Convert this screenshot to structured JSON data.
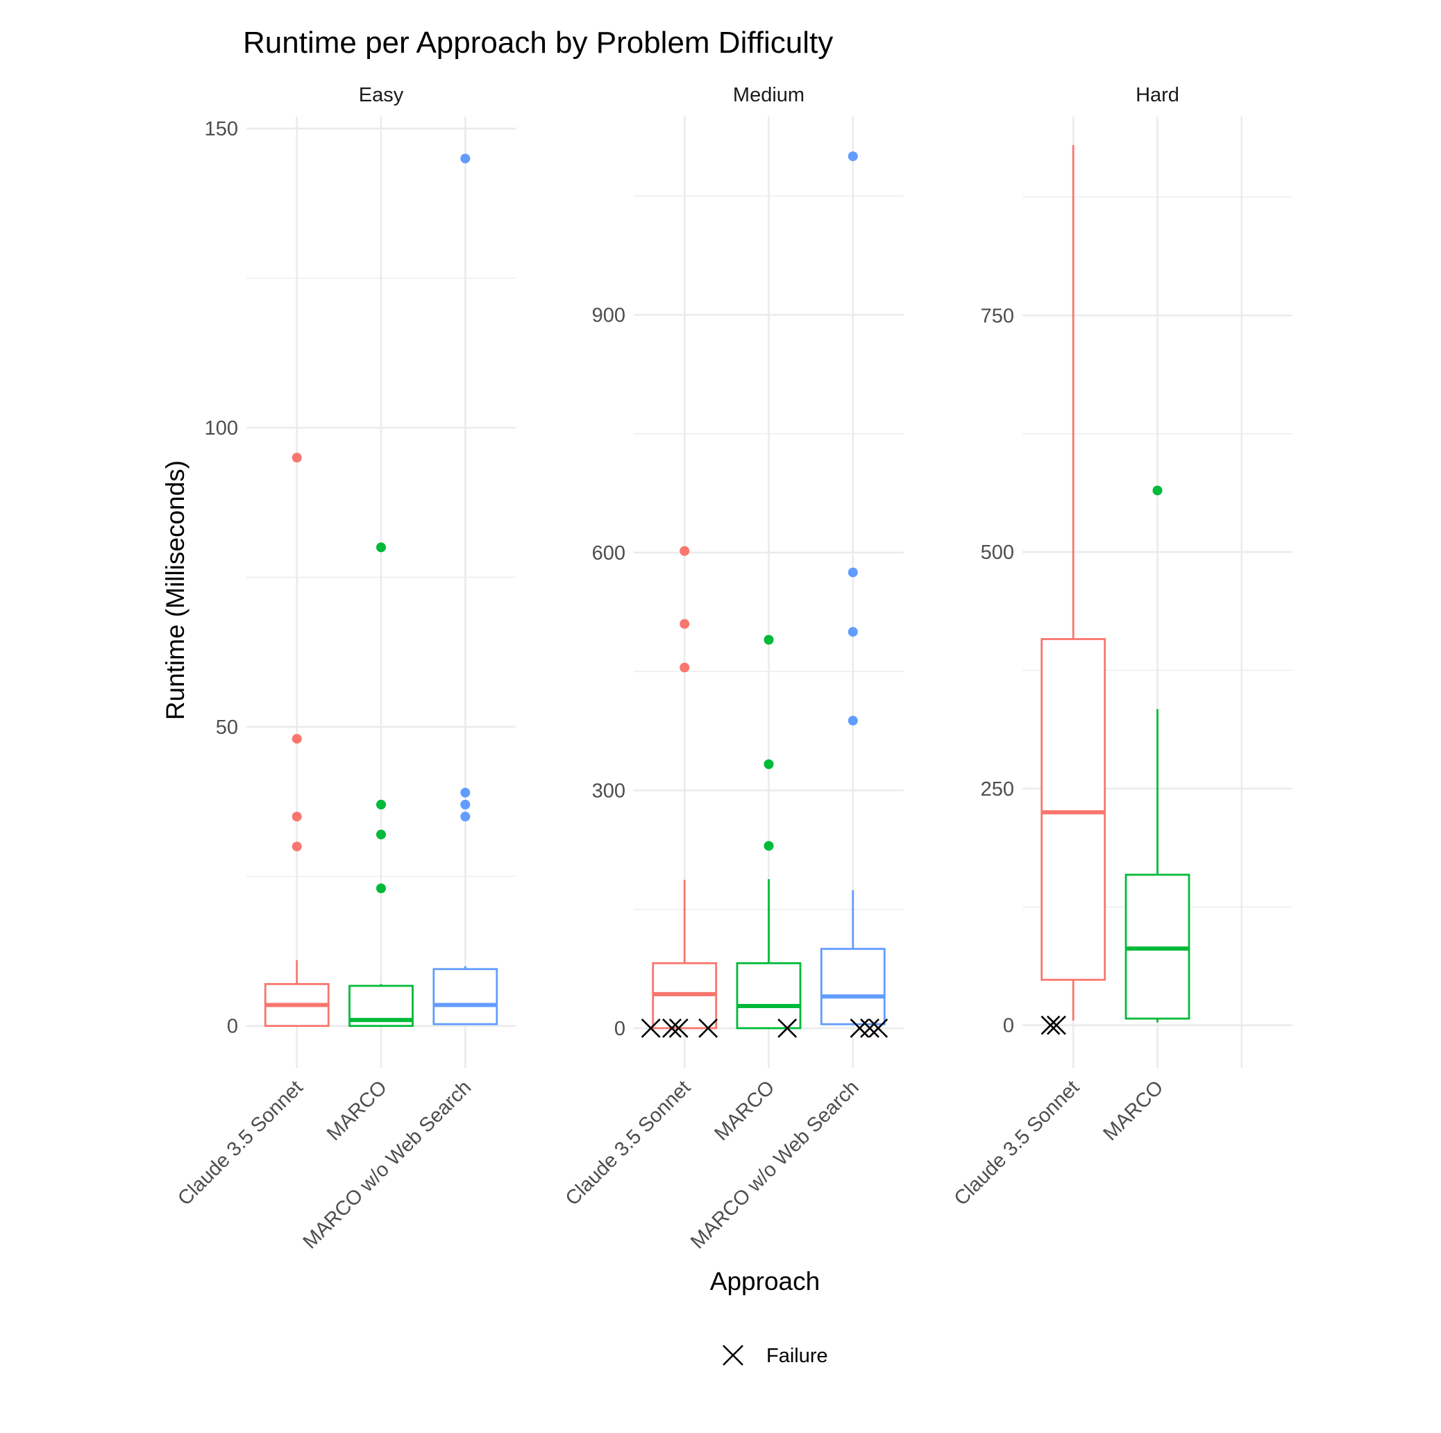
{
  "chart_data": {
    "type": "boxplot",
    "title": "Runtime per Approach by Problem Difficulty",
    "xlabel": "Approach",
    "ylabel": "Runtime (Milliseconds)",
    "legend": {
      "placement": "bottom",
      "entries": [
        {
          "label": "Failure",
          "shape": "cross"
        }
      ]
    },
    "colors": {
      "Claude 3.5 Sonnet": "#F8766D",
      "MARCO": "#00BA38",
      "MARCO w/o Web Search": "#619CFF"
    },
    "facets": [
      {
        "label": "Easy",
        "ylim": [
          -7,
          152
        ],
        "yticks": [
          0,
          50,
          100,
          150
        ],
        "categories": [
          "Claude 3.5 Sonnet",
          "MARCO",
          "MARCO w/o Web Search"
        ],
        "boxes": [
          {
            "name": "Claude 3.5 Sonnet",
            "lower": 0,
            "q1": 0,
            "median": 3.5,
            "q3": 7,
            "upper": 11,
            "outliers": [
              95,
              48,
              35,
              30
            ]
          },
          {
            "name": "MARCO",
            "lower": 0,
            "q1": 0,
            "median": 1,
            "q3": 6.7,
            "upper": 7,
            "outliers": [
              80,
              37,
              32,
              23
            ]
          },
          {
            "name": "MARCO w/o Web Search",
            "lower": 0.3,
            "q1": 0.3,
            "median": 3.5,
            "q3": 9.5,
            "upper": 10,
            "outliers": [
              145,
              39,
              37,
              35
            ]
          }
        ],
        "failures": []
      },
      {
        "label": "Medium",
        "ylim": [
          -50,
          1150
        ],
        "yticks": [
          0,
          300,
          600,
          900
        ],
        "categories": [
          "Claude 3.5 Sonnet",
          "MARCO",
          "MARCO w/o Web Search"
        ],
        "boxes": [
          {
            "name": "Claude 3.5 Sonnet",
            "lower": 0,
            "q1": 0,
            "median": 43,
            "q3": 82,
            "upper": 187,
            "outliers": [
              602,
              510,
              455
            ]
          },
          {
            "name": "MARCO",
            "lower": 0,
            "q1": 0,
            "median": 28,
            "q3": 82,
            "upper": 188,
            "outliers": [
              490,
              333,
              230
            ]
          },
          {
            "name": "MARCO w/o Web Search",
            "lower": 5,
            "q1": 5,
            "median": 40,
            "q3": 100,
            "upper": 174,
            "outliers": [
              1100,
              575,
              500,
              388
            ]
          }
        ],
        "failures": [
          {
            "approach": "Claude 3.5 Sonnet",
            "offset": -0.4,
            "value": 0
          },
          {
            "approach": "Claude 3.5 Sonnet",
            "offset": -0.15,
            "value": 0
          },
          {
            "approach": "Claude 3.5 Sonnet",
            "offset": -0.07,
            "value": 0
          },
          {
            "approach": "Claude 3.5 Sonnet",
            "offset": 0.28,
            "value": 0
          },
          {
            "approach": "MARCO",
            "offset": 0.22,
            "value": 0
          },
          {
            "approach": "MARCO w/o Web Search",
            "offset": 0.08,
            "value": 0
          },
          {
            "approach": "MARCO w/o Web Search",
            "offset": 0.2,
            "value": 0
          },
          {
            "approach": "MARCO w/o Web Search",
            "offset": 0.3,
            "value": 0
          }
        ]
      },
      {
        "label": "Hard",
        "ylim": [
          -45,
          960
        ],
        "yticks": [
          0,
          250,
          500,
          750
        ],
        "categories": [
          "Claude 3.5 Sonnet",
          "MARCO",
          ""
        ],
        "boxes": [
          {
            "name": "Claude 3.5 Sonnet",
            "lower": 5,
            "q1": 48,
            "median": 225,
            "q3": 408,
            "upper": 930,
            "outliers": []
          },
          {
            "name": "MARCO",
            "lower": 3,
            "q1": 7,
            "median": 81,
            "q3": 159,
            "upper": 334,
            "outliers": [
              565
            ]
          }
        ],
        "failures": [
          {
            "approach": "Claude 3.5 Sonnet",
            "offset": -0.27,
            "value": 0
          },
          {
            "approach": "Claude 3.5 Sonnet",
            "offset": -0.2,
            "value": 0
          }
        ]
      }
    ]
  }
}
